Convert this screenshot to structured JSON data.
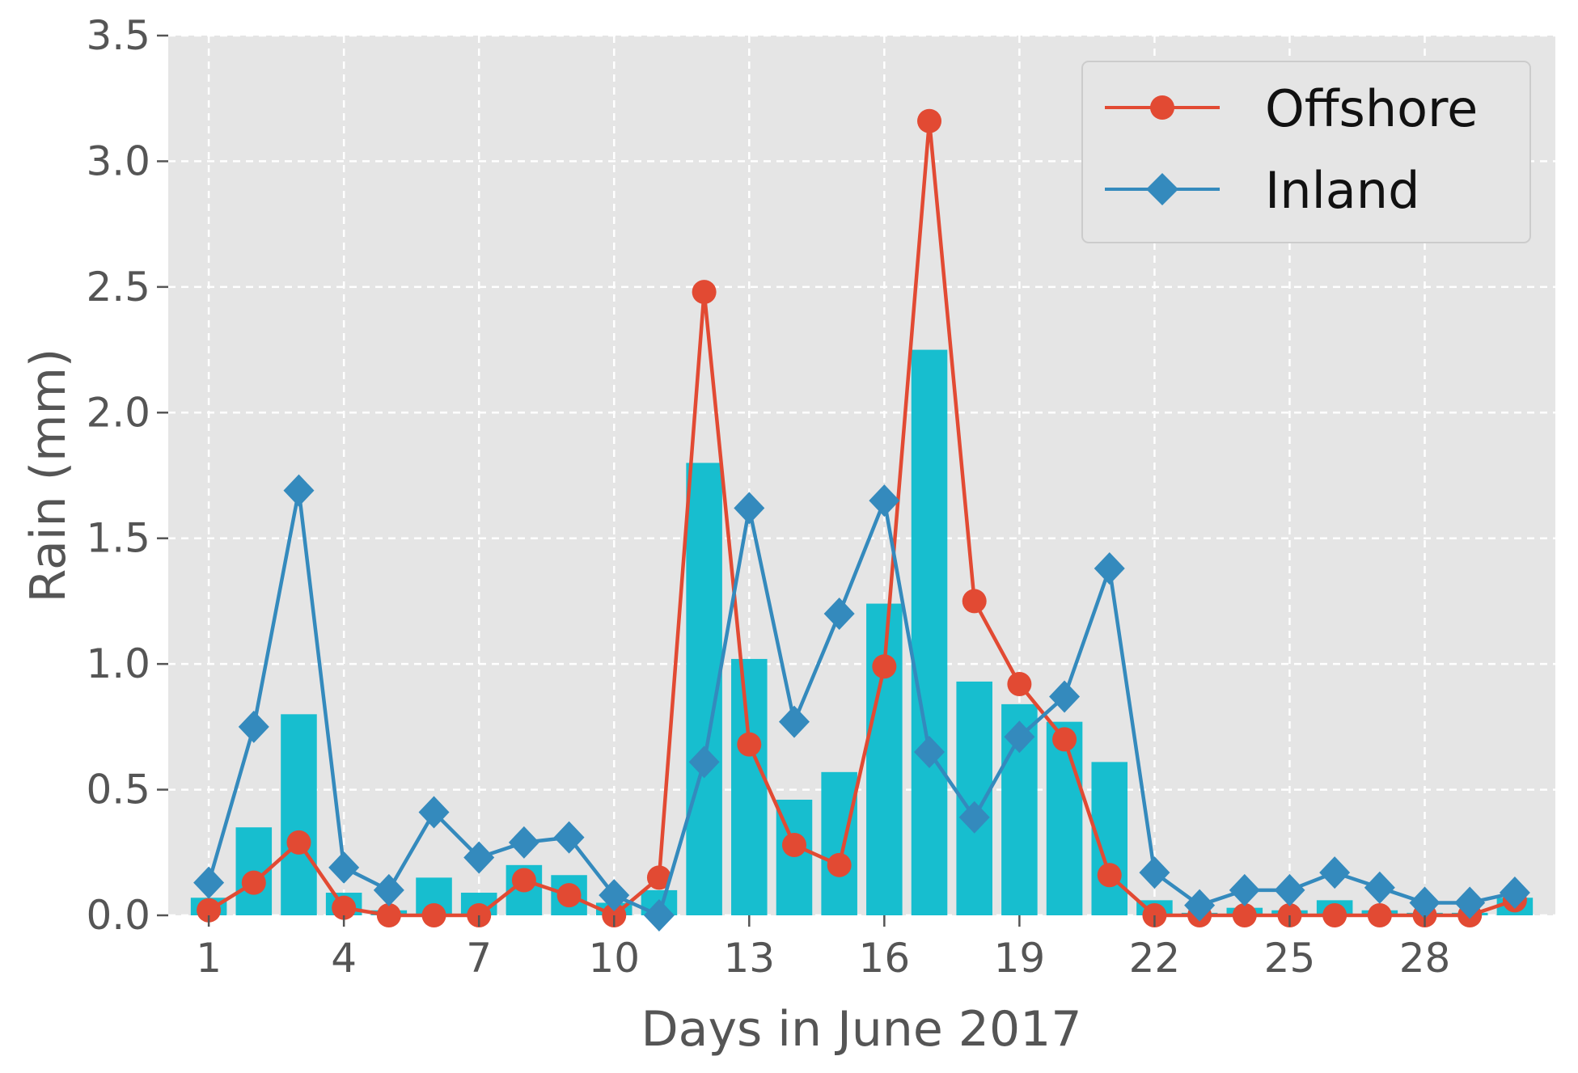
{
  "chart_data": {
    "type": "bar+line",
    "title": "",
    "xlabel": "Days in June 2017",
    "ylabel": "Rain (mm)",
    "xlim": [
      0.1,
      30.9
    ],
    "ylim": [
      0,
      3.5
    ],
    "x_ticks": [
      1,
      4,
      7,
      10,
      13,
      16,
      19,
      22,
      25,
      28
    ],
    "y_ticks": [
      "0.0",
      "0.5",
      "1.0",
      "1.5",
      "2.0",
      "2.5",
      "3.0",
      "3.5"
    ],
    "grid": true,
    "legend_position": "top-right",
    "days": [
      1,
      2,
      3,
      4,
      5,
      6,
      7,
      8,
      9,
      10,
      11,
      12,
      13,
      14,
      15,
      16,
      17,
      18,
      19,
      20,
      21,
      22,
      23,
      24,
      25,
      26,
      27,
      28,
      29,
      30
    ],
    "bars": {
      "color": "#17becf",
      "values": [
        0.07,
        0.35,
        0.8,
        0.09,
        0.02,
        0.15,
        0.09,
        0.2,
        0.16,
        0.05,
        0.1,
        1.8,
        1.02,
        0.46,
        0.57,
        1.24,
        2.25,
        0.93,
        0.84,
        0.77,
        0.61,
        0.06,
        0.01,
        0.03,
        0.02,
        0.06,
        0.02,
        0.01,
        0.01,
        0.07
      ]
    },
    "series": [
      {
        "name": "Offshore",
        "color": "#e24a33",
        "marker": "circle",
        "values": [
          0.02,
          0.13,
          0.29,
          0.03,
          0.0,
          0.0,
          0.0,
          0.14,
          0.08,
          0.0,
          0.15,
          2.48,
          0.68,
          0.28,
          0.2,
          0.99,
          3.16,
          1.25,
          0.92,
          0.7,
          0.16,
          0.0,
          0.0,
          0.0,
          0.0,
          0.0,
          0.0,
          0.0,
          0.0,
          0.06
        ]
      },
      {
        "name": "Inland",
        "color": "#348abd",
        "marker": "diamond",
        "values": [
          0.13,
          0.75,
          1.69,
          0.19,
          0.1,
          0.41,
          0.23,
          0.29,
          0.31,
          0.08,
          0.0,
          0.61,
          1.62,
          0.77,
          1.2,
          1.65,
          0.65,
          0.39,
          0.71,
          0.87,
          1.38,
          0.17,
          0.04,
          0.1,
          0.1,
          0.17,
          0.11,
          0.05,
          0.05,
          0.09
        ]
      }
    ]
  }
}
